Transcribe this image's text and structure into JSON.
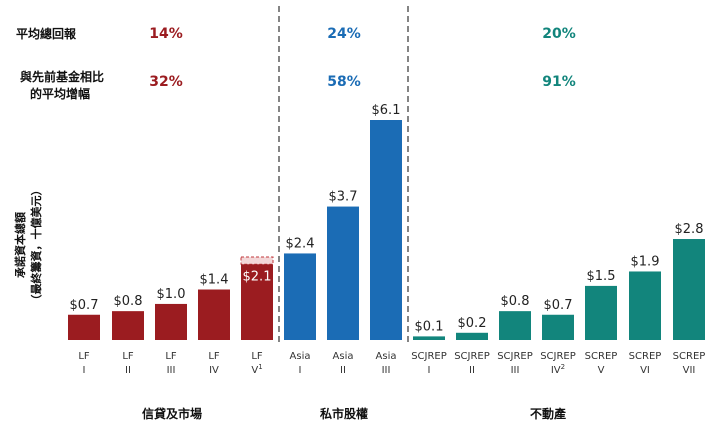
{
  "header": {
    "row1_label": "平均總回報",
    "row2_label_line1": "與先前基金相比",
    "row2_label_line2": "的平均增幅"
  },
  "colors": {
    "credit": "#9b1c20",
    "pe": "#1b6cb5",
    "re": "#12857c",
    "placeholder_fill": "#f3d7d8",
    "placeholder_stroke": "#c0393d"
  },
  "groups": [
    {
      "name": "信貸及市場",
      "color": "#9b1c20",
      "stat1": "14%",
      "stat2": "32%"
    },
    {
      "name": "私市股權",
      "color": "#1b6cb5",
      "stat1": "24%",
      "stat2": "58%"
    },
    {
      "name": "不動產",
      "color": "#12857c",
      "stat1": "20%",
      "stat2": "91%"
    }
  ],
  "chart_data": {
    "type": "bar",
    "ylabel_line1": "承諾資本總額",
    "ylabel_line2": "（最終籌資，十億美元）",
    "categories": [
      {
        "l1": "LF",
        "l2": "I",
        "sup": ""
      },
      {
        "l1": "LF",
        "l2": "II",
        "sup": ""
      },
      {
        "l1": "LF",
        "l2": "III",
        "sup": ""
      },
      {
        "l1": "LF",
        "l2": "IV",
        "sup": ""
      },
      {
        "l1": "LF",
        "l2": "V",
        "sup": "1"
      },
      {
        "l1": "Asia",
        "l2": "I",
        "sup": ""
      },
      {
        "l1": "Asia",
        "l2": "II",
        "sup": ""
      },
      {
        "l1": "Asia",
        "l2": "III",
        "sup": ""
      },
      {
        "l1": "SCJREP",
        "l2": "I",
        "sup": ""
      },
      {
        "l1": "SCJREP",
        "l2": "II",
        "sup": ""
      },
      {
        "l1": "SCJREP",
        "l2": "III",
        "sup": ""
      },
      {
        "l1": "SCJREP",
        "l2": "IV",
        "sup": "2"
      },
      {
        "l1": "SCREP",
        "l2": "V",
        "sup": ""
      },
      {
        "l1": "SCREP",
        "l2": "VI",
        "sup": ""
      },
      {
        "l1": "SCREP",
        "l2": "VII",
        "sup": ""
      }
    ],
    "values": [
      0.7,
      0.8,
      1.0,
      1.4,
      2.1,
      2.4,
      3.7,
      6.1,
      0.1,
      0.2,
      0.8,
      0.7,
      1.5,
      1.9,
      2.8
    ],
    "value_labels": [
      "$0.7",
      "$0.8",
      "$1.0",
      "$1.4",
      "$2.1",
      "$2.4",
      "$3.7",
      "$6.1",
      "$0.1",
      "$0.2",
      "$0.8",
      "$0.7",
      "$1.5",
      "$1.9",
      "$2.8"
    ],
    "group_index": [
      0,
      0,
      0,
      0,
      0,
      1,
      1,
      1,
      2,
      2,
      2,
      2,
      2,
      2,
      2
    ],
    "placeholder_top": {
      "index": 4,
      "value": 2.3
    },
    "ylim": [
      0,
      6.1
    ]
  }
}
